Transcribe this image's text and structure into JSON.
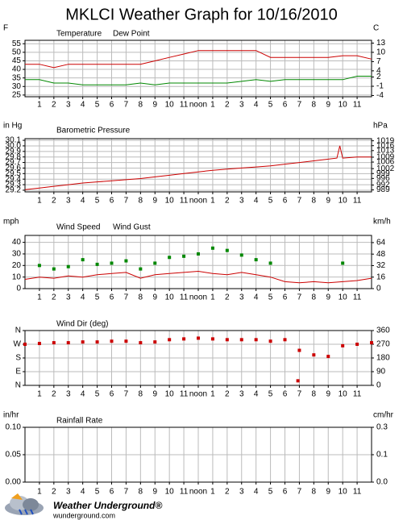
{
  "title": "MKLCI Weather Graph for 10/16/2010",
  "footer": {
    "brand": "Weather Underground®",
    "site": "wunderground.com"
  },
  "chart_data": [
    {
      "type": "line",
      "y_unit": "F",
      "y2_unit": "C",
      "x": [
        0,
        1,
        2,
        3,
        4,
        5,
        6,
        7,
        8,
        9,
        10,
        11,
        12,
        13,
        14,
        15,
        16,
        17,
        18,
        19,
        20,
        21,
        22,
        23,
        24
      ],
      "series": [
        {
          "name": "Temperature",
          "color": "#cc0000",
          "mode": "line",
          "values": [
            43,
            43,
            41,
            43,
            43,
            43,
            43,
            43,
            43,
            45,
            47,
            49,
            51,
            51,
            51,
            51,
            51,
            47,
            47,
            47,
            47,
            47,
            48,
            48,
            46
          ]
        },
        {
          "name": "Dew Point",
          "color": "#008800",
          "mode": "line",
          "values": [
            34,
            34,
            32,
            32,
            31,
            31,
            31,
            31,
            32,
            31,
            32,
            32,
            32,
            32,
            32,
            33,
            34,
            33,
            34,
            34,
            34,
            34,
            34,
            36,
            36
          ]
        }
      ],
      "xlim": [
        0,
        24
      ],
      "xticks": [
        1,
        2,
        3,
        4,
        5,
        6,
        7,
        8,
        9,
        10,
        11,
        {
          "value": 12,
          "label": "noon"
        },
        {
          "value": 13,
          "label": "1"
        },
        {
          "value": 14,
          "label": "2"
        },
        {
          "value": 15,
          "label": "3"
        },
        {
          "value": 16,
          "label": "4"
        },
        {
          "value": 17,
          "label": "5"
        },
        {
          "value": 18,
          "label": "6"
        },
        {
          "value": 19,
          "label": "7"
        },
        {
          "value": 20,
          "label": "8"
        },
        {
          "value": 21,
          "label": "9"
        },
        {
          "value": 22,
          "label": "10"
        },
        {
          "value": 23,
          "label": "11"
        }
      ],
      "ylim": [
        24,
        57
      ],
      "yticks": [
        55,
        50,
        45,
        40,
        35,
        30,
        25
      ],
      "y2lim": [
        -4.4,
        13.9
      ],
      "y2ticks": [
        13,
        10,
        7,
        4,
        2,
        -1,
        -4
      ],
      "grid": true
    },
    {
      "type": "line",
      "y_unit": "in Hg",
      "y2_unit": "hPa",
      "x": [
        0,
        1,
        2,
        3,
        4,
        5,
        6,
        7,
        8,
        9,
        10,
        11,
        12,
        13,
        14,
        15,
        16,
        17,
        18,
        19,
        20,
        21,
        21.6,
        21.8,
        22,
        23,
        24
      ],
      "series": [
        {
          "name": "Barometric Pressure",
          "color": "#cc0000",
          "mode": "line",
          "values": [
            29.21,
            29.24,
            29.27,
            29.3,
            29.33,
            29.35,
            29.37,
            29.39,
            29.41,
            29.44,
            29.47,
            29.5,
            29.53,
            29.56,
            29.58,
            29.6,
            29.62,
            29.64,
            29.67,
            29.7,
            29.73,
            29.76,
            29.78,
            30.0,
            29.78,
            29.8,
            29.8
          ]
        }
      ],
      "xlim": [
        0,
        24
      ],
      "xticks": [
        1,
        2,
        3,
        4,
        5,
        6,
        7,
        8,
        9,
        10,
        11,
        {
          "value": 12,
          "label": "noon"
        },
        {
          "value": 13,
          "label": "1"
        },
        {
          "value": 14,
          "label": "2"
        },
        {
          "value": 15,
          "label": "3"
        },
        {
          "value": 16,
          "label": "4"
        },
        {
          "value": 17,
          "label": "5"
        },
        {
          "value": 18,
          "label": "6"
        },
        {
          "value": 19,
          "label": "7"
        },
        {
          "value": 20,
          "label": "8"
        },
        {
          "value": 21,
          "label": "9"
        },
        {
          "value": 22,
          "label": "10"
        },
        {
          "value": 23,
          "label": "11"
        }
      ],
      "ylim": [
        29.17,
        30.13
      ],
      "yticks": [
        30.1,
        {
          "value": 30.0,
          "label": "30.0"
        },
        29.9,
        29.8,
        29.7,
        29.6,
        29.5,
        29.4,
        29.3,
        29.2
      ],
      "y2lim": [
        987.8,
        1020.3
      ],
      "y2ticks": [
        1019,
        1016,
        1013,
        1009,
        1006,
        1002,
        999,
        996,
        992,
        989
      ],
      "grid": true
    },
    {
      "type": "line",
      "y_unit": "mph",
      "y2_unit": "km/h",
      "x": [
        0,
        1,
        2,
        3,
        4,
        5,
        6,
        7,
        8,
        9,
        10,
        11,
        12,
        13,
        14,
        15,
        16,
        17,
        18,
        19,
        20,
        21,
        22,
        23,
        24
      ],
      "series": [
        {
          "name": "Wind Speed",
          "color": "#cc0000",
          "mode": "line",
          "values": [
            8,
            10,
            9,
            11,
            10,
            12,
            13,
            14,
            9,
            12,
            13,
            14,
            15,
            13,
            12,
            14,
            12,
            10,
            6,
            5,
            6,
            5,
            6,
            7,
            9
          ]
        },
        {
          "name": "Wind Gust",
          "color": "#008800",
          "mode": "markers",
          "values": [
            null,
            20,
            17,
            19,
            25,
            21,
            22,
            24,
            17,
            22,
            27,
            28,
            30,
            35,
            33,
            29,
            25,
            22,
            null,
            null,
            null,
            null,
            22,
            null,
            null
          ]
        }
      ],
      "xlim": [
        0,
        24
      ],
      "xticks": [
        1,
        2,
        3,
        4,
        5,
        6,
        7,
        8,
        9,
        10,
        11,
        {
          "value": 12,
          "label": "noon"
        },
        {
          "value": 13,
          "label": "1"
        },
        {
          "value": 14,
          "label": "2"
        },
        {
          "value": 15,
          "label": "3"
        },
        {
          "value": 16,
          "label": "4"
        },
        {
          "value": 17,
          "label": "5"
        },
        {
          "value": 18,
          "label": "6"
        },
        {
          "value": 19,
          "label": "7"
        },
        {
          "value": 20,
          "label": "8"
        },
        {
          "value": 21,
          "label": "9"
        },
        {
          "value": 22,
          "label": "10"
        },
        {
          "value": 23,
          "label": "11"
        }
      ],
      "ylim": [
        0,
        46
      ],
      "yticks": [
        40,
        30,
        20,
        10,
        0
      ],
      "y2lim": [
        0,
        74
      ],
      "y2ticks": [
        64,
        48,
        32,
        16,
        0
      ],
      "grid": true
    },
    {
      "type": "scatter",
      "x": [
        0,
        1,
        2,
        3,
        4,
        5,
        6,
        7,
        8,
        9,
        10,
        11,
        12,
        13,
        14,
        15,
        16,
        17,
        18,
        18.9,
        19,
        20,
        21,
        22,
        23,
        24
      ],
      "series": [
        {
          "name": "Wind Dir (deg)",
          "color": "#cc0000",
          "mode": "markers",
          "values": [
            270,
            275,
            280,
            280,
            285,
            285,
            290,
            290,
            280,
            285,
            300,
            305,
            310,
            305,
            300,
            300,
            300,
            290,
            300,
            30,
            230,
            200,
            190,
            260,
            270,
            280
          ]
        }
      ],
      "xlim": [
        0,
        24
      ],
      "xticks": [
        1,
        2,
        3,
        4,
        5,
        6,
        7,
        8,
        9,
        10,
        11,
        {
          "value": 12,
          "label": "noon"
        },
        {
          "value": 13,
          "label": "1"
        },
        {
          "value": 14,
          "label": "2"
        },
        {
          "value": 15,
          "label": "3"
        },
        {
          "value": 16,
          "label": "4"
        },
        {
          "value": 17,
          "label": "5"
        },
        {
          "value": 18,
          "label": "6"
        },
        {
          "value": 19,
          "label": "7"
        },
        {
          "value": 20,
          "label": "8"
        },
        {
          "value": 21,
          "label": "9"
        },
        {
          "value": 22,
          "label": "10"
        },
        {
          "value": 23,
          "label": "11"
        }
      ],
      "ylim": [
        0,
        360
      ],
      "yticks": [
        {
          "value": 360,
          "label": "N"
        },
        {
          "value": 270,
          "label": "W"
        },
        {
          "value": 180,
          "label": "S"
        },
        {
          "value": 90,
          "label": "E"
        },
        {
          "value": 0,
          "label": "N"
        }
      ],
      "y2lim": [
        0,
        360
      ],
      "y2ticks": [
        360,
        270,
        180,
        90,
        0
      ],
      "grid": true
    },
    {
      "type": "line",
      "y_unit": "in/hr",
      "y2_unit": "cm/hr",
      "x": [],
      "series": [
        {
          "name": "Rainfall Rate",
          "color": "#cc0000",
          "mode": "line",
          "values": []
        }
      ],
      "xlim": [
        0,
        24
      ],
      "xticks": [
        1,
        2,
        3,
        4,
        5,
        6,
        7,
        8,
        9,
        10,
        11,
        {
          "value": 12,
          "label": "noon"
        },
        {
          "value": 13,
          "label": "1"
        },
        {
          "value": 14,
          "label": "2"
        },
        {
          "value": 15,
          "label": "3"
        },
        {
          "value": 16,
          "label": "4"
        },
        {
          "value": 17,
          "label": "5"
        },
        {
          "value": 18,
          "label": "6"
        },
        {
          "value": 19,
          "label": "7"
        },
        {
          "value": 20,
          "label": "8"
        },
        {
          "value": 21,
          "label": "9"
        },
        {
          "value": 22,
          "label": "10"
        },
        {
          "value": 23,
          "label": "11"
        }
      ],
      "ylim": [
        0,
        0.1
      ],
      "yticks": [
        {
          "value": 0.1,
          "label": "0.10"
        },
        0.05,
        {
          "value": 0,
          "label": "0.00"
        }
      ],
      "y2lim": [
        0,
        0.254
      ],
      "y2ticks": [
        {
          "value": 0.254,
          "label": "0.3"
        },
        {
          "value": 0.127,
          "label": "0.1"
        },
        {
          "value": 0,
          "label": "0.0"
        }
      ],
      "grid": true
    }
  ]
}
